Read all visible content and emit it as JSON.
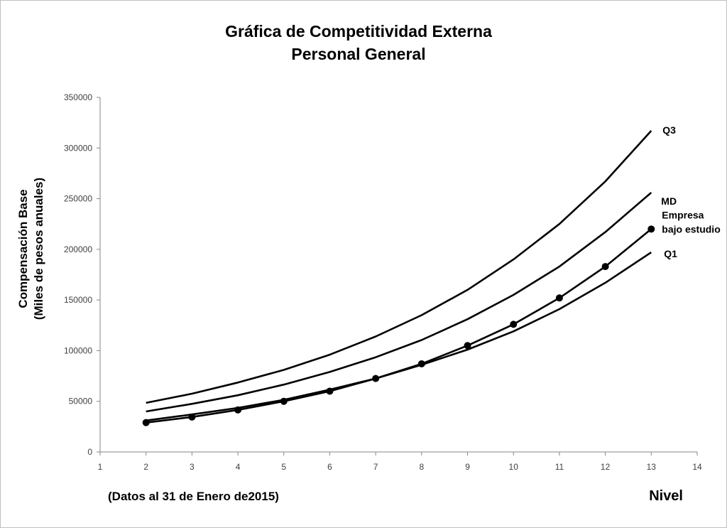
{
  "chart_data": {
    "type": "line",
    "title": [
      "Gráfica de Competitividad Externa",
      "Personal General"
    ],
    "ylabel": [
      "Compensación Base",
      "(Miles de pesos anuales)"
    ],
    "xlabel": "Nivel",
    "note": "(Datos al 31 de Enero de2015)",
    "xlim": [
      1,
      14
    ],
    "ylim": [
      0,
      350000
    ],
    "x_ticks": [
      1,
      2,
      3,
      4,
      5,
      6,
      7,
      8,
      9,
      10,
      11,
      12,
      13,
      14
    ],
    "y_ticks": [
      0,
      50000,
      100000,
      150000,
      200000,
      250000,
      300000,
      350000
    ],
    "grid": false,
    "line_color": "#000000",
    "series": [
      {
        "name": "Q3",
        "label": [
          "Q3"
        ],
        "markers": false,
        "x": [
          2,
          3,
          4,
          5,
          6,
          7,
          8,
          9,
          10,
          11,
          12,
          13
        ],
        "values": [
          48500,
          57500,
          68500,
          81000,
          96000,
          114000,
          135000,
          160000,
          190000,
          225000,
          267000,
          317000
        ]
      },
      {
        "name": "MD",
        "label": [
          "MD"
        ],
        "markers": false,
        "x": [
          2,
          3,
          4,
          5,
          6,
          7,
          8,
          9,
          10,
          11,
          12,
          13
        ],
        "values": [
          40000,
          47500,
          56000,
          66500,
          79000,
          93500,
          110500,
          131000,
          155000,
          183000,
          217000,
          256000
        ]
      },
      {
        "name": "Empresa bajo estudio",
        "label": [
          "Empresa",
          "bajo estudio"
        ],
        "markers": true,
        "x": [
          2,
          3,
          4,
          5,
          6,
          7,
          8,
          9,
          10,
          11,
          12,
          13
        ],
        "values": [
          29000,
          34500,
          41500,
          50000,
          60000,
          72500,
          87000,
          105000,
          126000,
          152000,
          183000,
          220000
        ]
      },
      {
        "name": "Q1",
        "label": [
          "Q1"
        ],
        "markers": false,
        "x": [
          2,
          3,
          4,
          5,
          6,
          7,
          8,
          9,
          10,
          11,
          12,
          13
        ],
        "values": [
          31000,
          37000,
          43500,
          51500,
          61500,
          72500,
          86000,
          101000,
          119000,
          141000,
          167000,
          197000
        ]
      }
    ]
  }
}
